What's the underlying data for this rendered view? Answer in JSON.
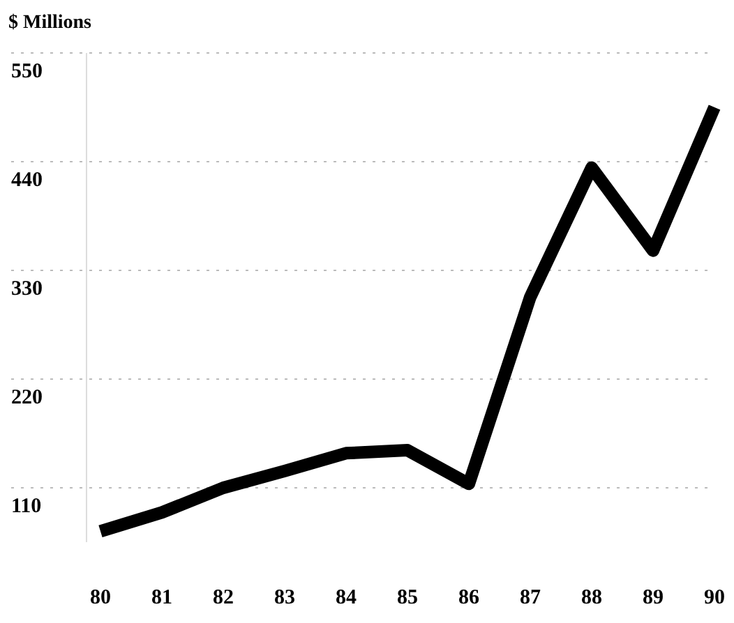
{
  "chart_data": {
    "type": "line",
    "ylabel": "$ Millions",
    "categories": [
      "80",
      "81",
      "82",
      "83",
      "84",
      "85",
      "86",
      "87",
      "88",
      "89",
      "90"
    ],
    "series": [
      {
        "color": "#000000",
        "values": [
          66,
          85,
          110,
          127,
          145,
          148,
          114,
          303,
          434,
          350,
          495
        ]
      }
    ],
    "ylim": [
      55,
      550
    ],
    "yticks": [
      110,
      220,
      330,
      440,
      550
    ],
    "grid": "y",
    "marker": "none",
    "line_style": "solid"
  }
}
